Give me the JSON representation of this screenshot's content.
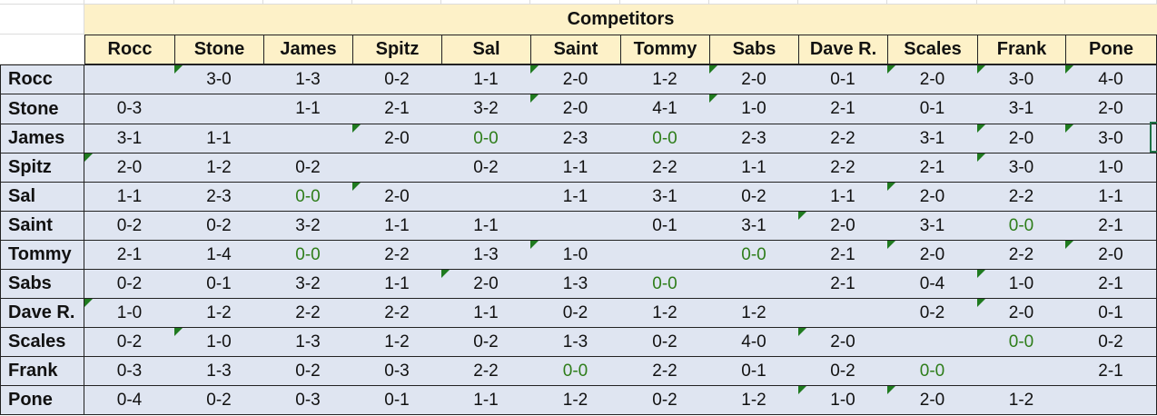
{
  "sheet": {
    "title": "Competitors",
    "columns": [
      "Rocc",
      "Stone",
      "James",
      "Spitz",
      "Sal",
      "Saint",
      "Tommy",
      "Sabs",
      "Dave R.",
      "Scales",
      "Frank",
      "Pone"
    ],
    "rows": [
      {
        "name": "Rocc",
        "cells": [
          "",
          "3-0",
          "1-3",
          "0-2",
          "1-1",
          "2-0",
          "1-2",
          "2-0",
          "0-1",
          "2-0",
          "3-0",
          "4-0"
        ]
      },
      {
        "name": "Stone",
        "cells": [
          "0-3",
          "",
          "1-1",
          "2-1",
          "3-2",
          "2-0",
          "4-1",
          "1-0",
          "2-1",
          "0-1",
          "3-1",
          "2-0"
        ]
      },
      {
        "name": "James",
        "cells": [
          "3-1",
          "1-1",
          "",
          "2-0",
          "0-0",
          "2-3",
          "0-0",
          "2-3",
          "2-2",
          "3-1",
          "2-0",
          "3-0"
        ]
      },
      {
        "name": "Spitz",
        "cells": [
          "2-0",
          "1-2",
          "0-2",
          "",
          "0-2",
          "1-1",
          "2-2",
          "1-1",
          "2-2",
          "2-1",
          "3-0",
          "1-0"
        ]
      },
      {
        "name": "Sal",
        "cells": [
          "1-1",
          "2-3",
          "0-0",
          "2-0",
          "",
          "1-1",
          "3-1",
          "0-2",
          "1-1",
          "2-0",
          "2-2",
          "1-1"
        ]
      },
      {
        "name": "Saint",
        "cells": [
          "0-2",
          "0-2",
          "3-2",
          "1-1",
          "1-1",
          "",
          "0-1",
          "3-1",
          "2-0",
          "3-1",
          "0-0",
          "2-1"
        ]
      },
      {
        "name": "Tommy",
        "cells": [
          "2-1",
          "1-4",
          "0-0",
          "2-2",
          "1-3",
          "1-0",
          "",
          "0-0",
          "2-1",
          "2-0",
          "2-2",
          "2-0"
        ]
      },
      {
        "name": "Sabs",
        "cells": [
          "0-2",
          "0-1",
          "3-2",
          "1-1",
          "2-0",
          "1-3",
          "0-0",
          "",
          "2-1",
          "0-4",
          "1-0",
          "2-1"
        ]
      },
      {
        "name": "Dave R.",
        "cells": [
          "1-0",
          "1-2",
          "2-2",
          "2-2",
          "1-1",
          "0-2",
          "1-2",
          "1-2",
          "",
          "0-2",
          "2-0",
          "0-1"
        ]
      },
      {
        "name": "Scales",
        "cells": [
          "0-2",
          "1-0",
          "1-3",
          "1-2",
          "0-2",
          "1-3",
          "0-2",
          "4-0",
          "2-0",
          "",
          "0-0",
          "0-2"
        ]
      },
      {
        "name": "Frank",
        "cells": [
          "0-3",
          "1-3",
          "0-2",
          "0-3",
          "2-2",
          "0-0",
          "2-2",
          "0-1",
          "0-2",
          "0-0",
          "",
          "2-1"
        ]
      },
      {
        "name": "Pone",
        "cells": [
          "0-4",
          "0-2",
          "0-3",
          "0-1",
          "1-1",
          "1-2",
          "0-2",
          "1-2",
          "1-0",
          "2-0",
          "1-2",
          ""
        ]
      }
    ]
  },
  "colors": {
    "header_fill": "#fdf1c8",
    "row_fill": "#dfe5f1",
    "draw_value_color": "#2e7d1a",
    "error_indicator": "#1f7a1f",
    "gridline": "#dcdcdc",
    "selection": "#1e7145"
  },
  "error_indicator_cells": [
    [
      0,
      1
    ],
    [
      0,
      5
    ],
    [
      0,
      7
    ],
    [
      0,
      9
    ],
    [
      0,
      10
    ],
    [
      0,
      11
    ],
    [
      1,
      5
    ],
    [
      1,
      7
    ],
    [
      2,
      3
    ],
    [
      2,
      10
    ],
    [
      2,
      11
    ],
    [
      3,
      0
    ],
    [
      3,
      10
    ],
    [
      4,
      3
    ],
    [
      4,
      9
    ],
    [
      5,
      8
    ],
    [
      6,
      5
    ],
    [
      6,
      9
    ],
    [
      6,
      11
    ],
    [
      7,
      4
    ],
    [
      7,
      10
    ],
    [
      8,
      0
    ],
    [
      8,
      10
    ],
    [
      9,
      1
    ],
    [
      9,
      8
    ],
    [
      11,
      8
    ],
    [
      11,
      9
    ]
  ]
}
